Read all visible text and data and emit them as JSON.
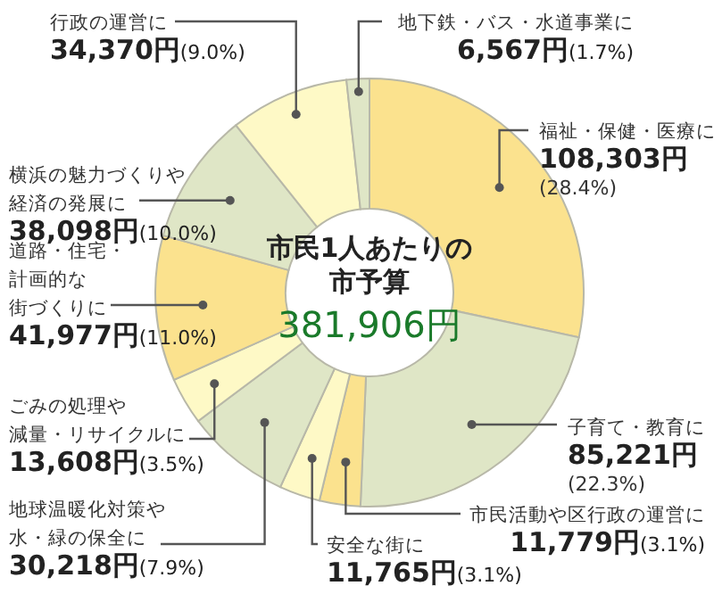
{
  "chart_data": {
    "type": "donut",
    "title": "市民1人あたりの市予算",
    "subtitle": "381,906円",
    "categories": [
      "福祉・保健・医療に",
      "子育て・教育に",
      "市民活動や区行政の運営に",
      "安全な街に",
      "地球温暖化対策や水・緑の保全に",
      "ごみの処理や減量・リサイクルに",
      "道路・住宅・計画的な街づくりに",
      "横浜の魅力づくりや経済の発展に",
      "行政の運営に",
      "地下鉄・バス・水道事業に"
    ],
    "values": [
      108303,
      85221,
      11779,
      11765,
      30218,
      13608,
      41977,
      38098,
      34370,
      6567
    ],
    "value_labels": [
      "108,303円(28.4%)",
      "85,221円(22.3%)",
      "11,779円(3.1%)",
      "11,765円(3.1%)",
      "30,218円(7.9%)",
      "13,608円(3.5%)",
      "41,977円(11.0%)",
      "38,098円(10.0%)",
      "34,370円(9.0%)",
      "6,567円(1.7%)"
    ],
    "colors": [
      "#fbe28e",
      "#dfe6c6",
      "#fbe28e",
      "#fef9c6",
      "#dfe6c6",
      "#fef9c6",
      "#fbe28e",
      "#dfe6c6",
      "#fef9c6",
      "#dfe6c6"
    ]
  }
}
